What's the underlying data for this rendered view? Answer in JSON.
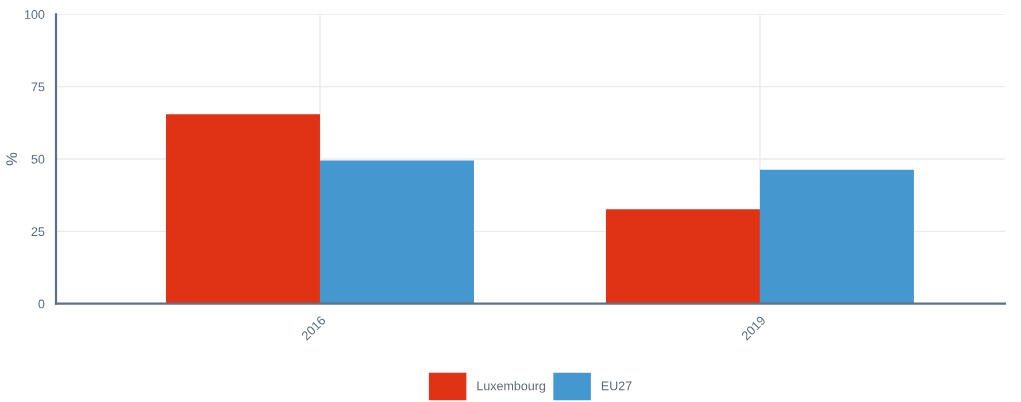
{
  "chart_data": {
    "type": "bar",
    "ylabel": "%",
    "categories": [
      "2016",
      "2019"
    ],
    "series": [
      {
        "name": "Luxembourg",
        "color": "#e03214",
        "values": [
          65.5,
          32.6
        ]
      },
      {
        "name": "EU27",
        "color": "#4497cf",
        "values": [
          49.5,
          46.3
        ]
      }
    ],
    "ylim": [
      0,
      100
    ],
    "yticks": [
      0,
      25,
      50,
      75,
      100
    ],
    "grid": true,
    "legend": "bottom"
  }
}
